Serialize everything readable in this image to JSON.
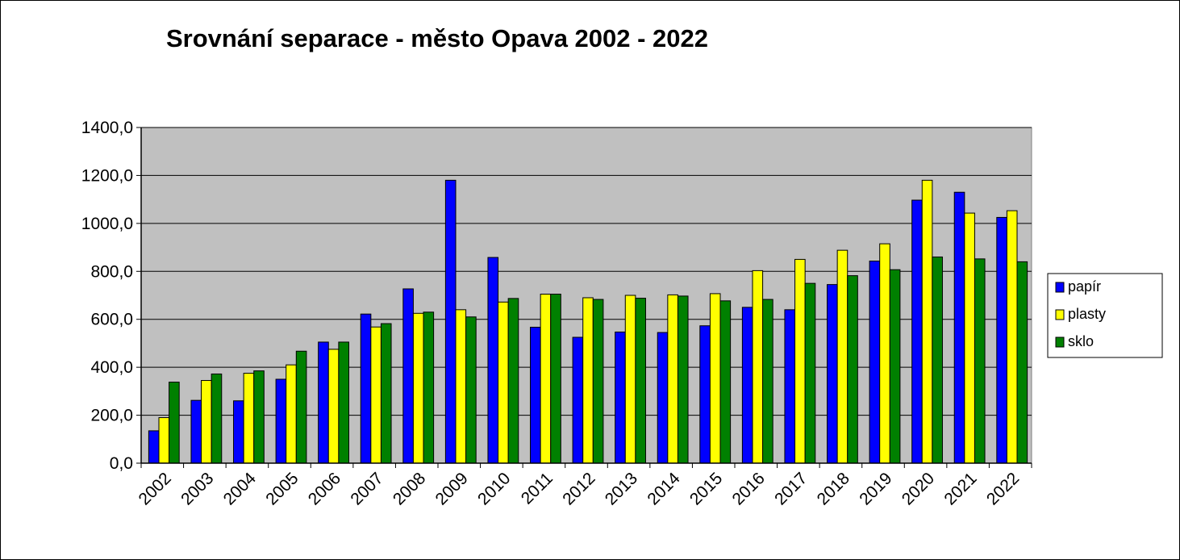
{
  "chart_data": {
    "type": "bar",
    "title": "Srovnání separace - město Opava 2002 - 2022",
    "xlabel": "",
    "ylabel": "",
    "categories": [
      "2002",
      "2003",
      "2004",
      "2005",
      "2006",
      "2007",
      "2008",
      "2009",
      "2010",
      "2011",
      "2012",
      "2013",
      "2014",
      "2015",
      "2016",
      "2017",
      "2018",
      "2019",
      "2020",
      "2021",
      "2022"
    ],
    "ylim": [
      0,
      1400
    ],
    "yticks": [
      0,
      200,
      400,
      600,
      800,
      1000,
      1200,
      1400
    ],
    "ytick_labels": [
      "0,0",
      "200,0",
      "400,0",
      "600,0",
      "800,0",
      "1000,0",
      "1200,0",
      "1400,0"
    ],
    "grid": true,
    "legend_position": "right",
    "plot_background": "#C0C0C0",
    "series": [
      {
        "name": "papír",
        "color": "#0000FF",
        "values": [
          135,
          262,
          260,
          350,
          505,
          622,
          727,
          1180,
          858,
          567,
          525,
          547,
          545,
          573,
          650,
          640,
          745,
          843,
          1097,
          1130,
          1025
        ]
      },
      {
        "name": "plasty",
        "color": "#FFFF00",
        "values": [
          190,
          345,
          375,
          410,
          475,
          568,
          625,
          640,
          672,
          705,
          690,
          700,
          702,
          707,
          803,
          850,
          888,
          915,
          1180,
          1043,
          1053
        ]
      },
      {
        "name": "sklo",
        "color": "#008000",
        "values": [
          338,
          372,
          385,
          467,
          505,
          582,
          630,
          610,
          687,
          705,
          683,
          688,
          697,
          677,
          683,
          750,
          782,
          807,
          860,
          852,
          840
        ]
      }
    ]
  }
}
